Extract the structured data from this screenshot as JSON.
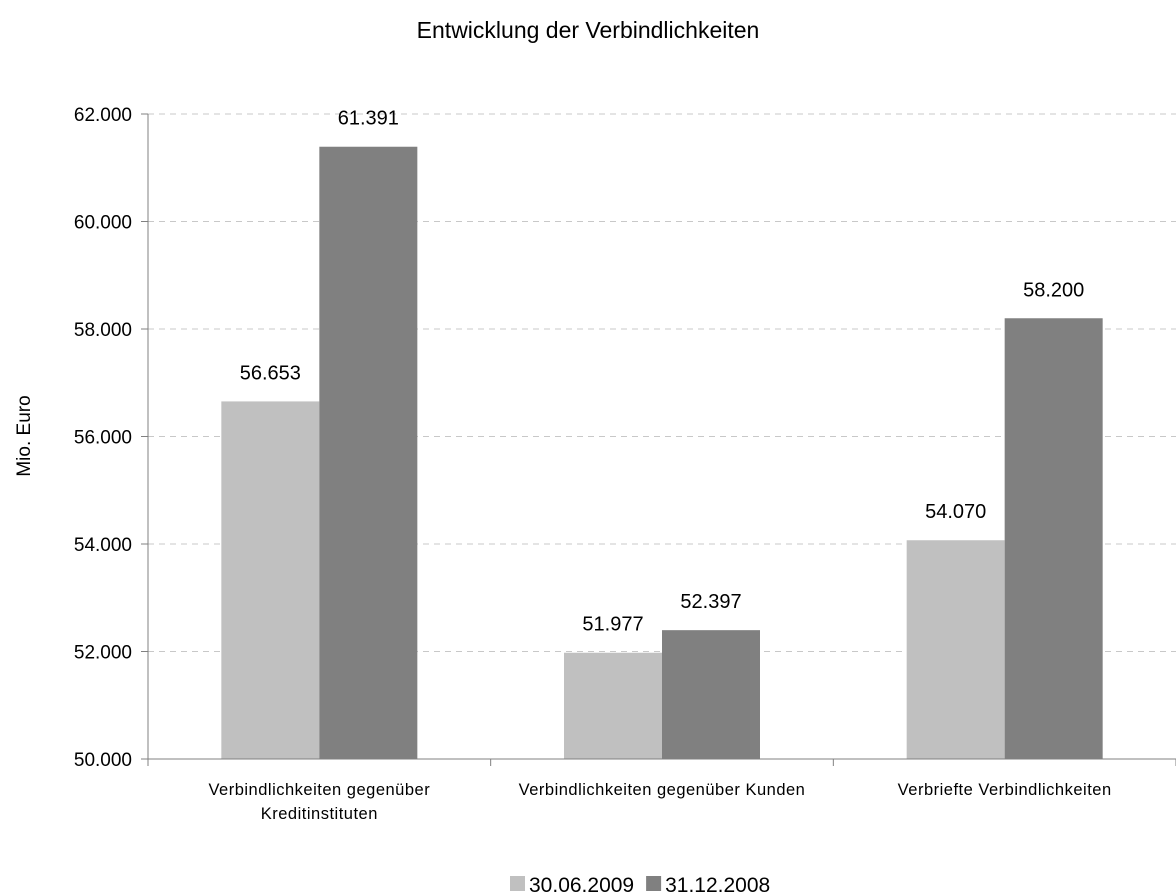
{
  "chart_data": {
    "type": "bar",
    "title": "Entwicklung der Verbindlichkeiten",
    "ylabel": "Mio. Euro",
    "categories": [
      "Verbindlichkeiten gegenüber Kreditinstituten",
      "Verbindlichkeiten gegenüber Kunden",
      "Verbriefte Verbindlichkeiten"
    ],
    "series": [
      {
        "name": "30.06.2009",
        "color": "#c0c0c0",
        "values": [
          56653,
          51977,
          54070
        ],
        "value_labels": [
          "56.653",
          "51.977",
          "54.070"
        ]
      },
      {
        "name": "31.12.2008",
        "color": "#808080",
        "values": [
          61391,
          52397,
          58200
        ],
        "value_labels": [
          "61.391",
          "52.397",
          "58.200"
        ]
      }
    ],
    "ylim": [
      50000,
      62000
    ],
    "yticks": [
      {
        "value": 50000,
        "label": "50.000"
      },
      {
        "value": 52000,
        "label": "52.000"
      },
      {
        "value": 54000,
        "label": "54.000"
      },
      {
        "value": 56000,
        "label": "56.000"
      },
      {
        "value": 58000,
        "label": "58.000"
      },
      {
        "value": 60000,
        "label": "60.000"
      },
      {
        "value": 62000,
        "label": "62.000"
      }
    ],
    "grid": true,
    "legend": "bottom"
  }
}
